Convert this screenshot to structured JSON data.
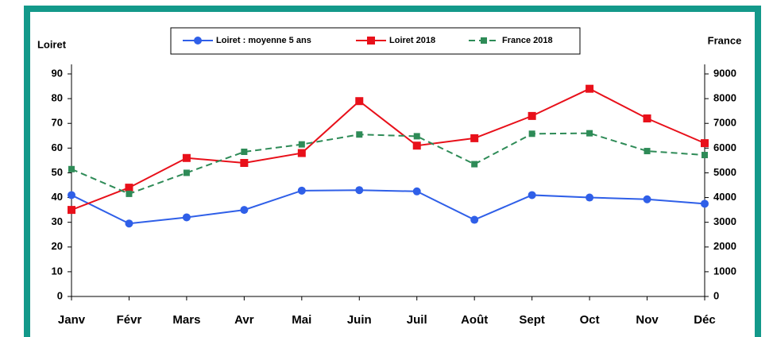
{
  "chart_data": {
    "type": "line",
    "ylabel": "Loiret",
    "y2label": "France",
    "categories": [
      "Janv",
      "Févr",
      "Mars",
      "Avr",
      "Mai",
      "Juin",
      "Juil",
      "Août",
      "Sept",
      "Oct",
      "Nov",
      "Déc"
    ],
    "series": [
      {
        "name": "Loiret : moyenne 5 ans",
        "color": "#2f5fe8",
        "marker": "circle",
        "dashed": false,
        "values": [
          41,
          29.5,
          32,
          35,
          42.8,
          43,
          42.5,
          31,
          41,
          40,
          39.3,
          37.5
        ]
      },
      {
        "name": "Loiret 2018",
        "color": "#e8101a",
        "marker": "square",
        "dashed": false,
        "values": [
          35,
          44,
          56,
          54,
          58,
          79,
          61,
          64,
          73,
          84,
          72,
          62
        ]
      },
      {
        "name": "France 2018",
        "color": "#2e8b57",
        "marker": "square",
        "dashed": true,
        "axis": "y2",
        "values": [
          5150,
          4150,
          5000,
          5850,
          6150,
          6550,
          6480,
          5350,
          6580,
          6600,
          5880,
          5720
        ]
      }
    ],
    "ylim": [
      0,
      90
    ],
    "yticks": [
      0,
      10,
      20,
      30,
      40,
      50,
      60,
      70,
      80,
      90
    ],
    "y2lim": [
      0,
      9000
    ],
    "y2ticks": [
      0,
      1000,
      2000,
      3000,
      4000,
      5000,
      6000,
      7000,
      8000,
      9000
    ],
    "legend": "top",
    "grid": false
  }
}
